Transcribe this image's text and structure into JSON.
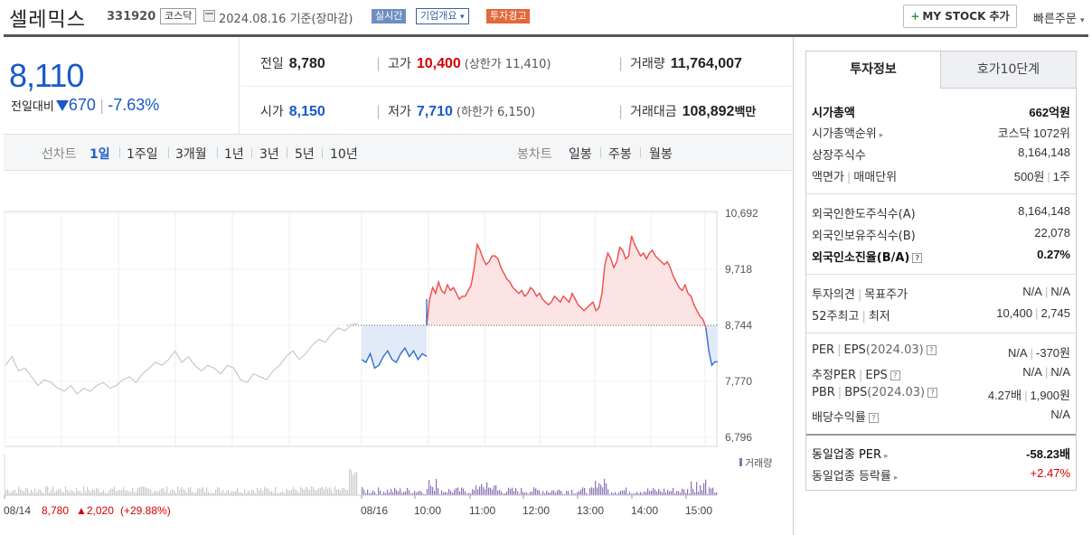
{
  "header": {
    "stock_name": "셀레믹스",
    "stock_code": "331920",
    "market": "코스닥",
    "date": "2024.08.16 기준(장마감)",
    "badges": [
      "실시간",
      "기업개요",
      "투자경고"
    ],
    "badge_arrow": "▾",
    "mystock_plus": "+",
    "mystock_label": "MY STOCK 추가",
    "quick_order": "빠른주문",
    "quick_order_arrow": "▾"
  },
  "summary": {
    "price": "8,110",
    "change_label": "전일대비",
    "change_value": "670",
    "change_pct": "-7.63%",
    "prev_close_label": "전일",
    "prev_close": "8,780",
    "high_label": "고가",
    "high": "10,400",
    "upper_limit": "(상한가 11,410)",
    "volume_label": "거래량",
    "volume": "11,764,007",
    "open_label": "시가",
    "open": "8,150",
    "low_label": "저가",
    "low": "7,710",
    "lower_limit": "(하한가 6,150)",
    "amount_label": "거래대금",
    "amount": "108,892",
    "amount_unit": "백만"
  },
  "chart_tabs": {
    "line_label": "선차트",
    "line_periods": [
      "1일",
      "1주일",
      "3개월",
      "1년",
      "3년",
      "5년",
      "10년"
    ],
    "candle_label": "봉차트",
    "candle_periods": [
      "일봉",
      "주봉",
      "월봉"
    ],
    "selected": "1일"
  },
  "chart_data": {
    "type": "line",
    "y_ticks": [
      "10,692",
      "9,718",
      "8,744",
      "7,770",
      "6,796"
    ],
    "ylim": [
      6796,
      10692
    ],
    "x_labels": [
      "08/14",
      "08/16",
      "10:00",
      "11:00",
      "12:00",
      "13:00",
      "14:00",
      "15:00"
    ],
    "baseline": 8744,
    "volume_legend": "거래량",
    "prev_day_info": {
      "date": "08/14",
      "close": "8,780",
      "change": "▲2,020",
      "pct": "(+29.88%)"
    },
    "colors": {
      "prev": "#c8c8c8",
      "up": "#ef4a4a",
      "down": "#2f6fd1",
      "up_fill": "#fde4e4",
      "down_fill": "#e2eaf8",
      "volume": "#8b72b8"
    },
    "series_prev_day": [
      8050,
      8200,
      7950,
      8000,
      7850,
      7700,
      7800,
      7750,
      7650,
      7600,
      7700,
      7550,
      7650,
      7600,
      7700,
      7750,
      7650,
      7700,
      7800,
      7850,
      7750,
      7900,
      8000,
      8100,
      8050,
      8150,
      8300,
      8100,
      8200,
      8050,
      7950,
      8050,
      8000,
      7900,
      8050,
      8000,
      7800,
      7750,
      7900,
      7850,
      7800,
      7950,
      8050,
      8200,
      8300,
      8150,
      8250,
      8400,
      8500,
      8450,
      8600,
      8700,
      8650,
      8750,
      8780
    ],
    "series_today_open": [
      8150,
      8100,
      8250,
      8000,
      8050,
      8200,
      8300,
      8150,
      8100,
      8250,
      8350,
      8200,
      8300,
      8150,
      8250,
      8200
    ],
    "series_today": [
      8744,
      9200,
      9400,
      9300,
      9500,
      9350,
      9300,
      9450,
      9350,
      9400,
      9300,
      9200,
      9250,
      9250,
      9350,
      9450,
      9750,
      10150,
      10050,
      9900,
      9800,
      9850,
      9950,
      9950,
      9900,
      9750,
      9650,
      9550,
      9500,
      9400,
      9350,
      9300,
      9350,
      9250,
      9300,
      9400,
      9350,
      9250,
      9300,
      9200,
      9150,
      9100,
      9150,
      9250,
      9200,
      9150,
      9250,
      9200,
      9150,
      9300,
      9200,
      9100,
      9050,
      9000,
      9050,
      9100,
      9150,
      9000,
      9050,
      9300,
      9800,
      10000,
      9900,
      9750,
      9850,
      10100,
      10050,
      9900,
      9950,
      10300,
      10150,
      10050,
      9950,
      10000,
      9900,
      10000,
      10050,
      9950,
      9900,
      9850,
      9800,
      9850,
      9750,
      9600,
      9500,
      9400,
      9350,
      9450,
      9300,
      9250,
      9100,
      9000,
      8900,
      8850,
      8700,
      8300,
      8050,
      8110,
      8110
    ]
  },
  "invest_panel": {
    "tab_active": "투자정보",
    "tab_other": "호가10단계",
    "arrow": "▸",
    "help": "?",
    "market_cap_label": "시가총액",
    "market_cap": "662억원",
    "market_cap_rank_label": "시가총액순위",
    "market_cap_rank": "코스닥 1072위",
    "listed_shares_label": "상장주식수",
    "listed_shares": "8,164,148",
    "face_value_label": "액면가",
    "trade_unit_label": "매매단위",
    "face_value": "500원",
    "trade_unit": "1주",
    "foreign_limit_label": "외국인한도주식수(A)",
    "foreign_limit": "8,164,148",
    "foreign_hold_label": "외국인보유주식수(B)",
    "foreign_hold": "22,078",
    "foreign_ratio_label": "외국인소진율(B/A)",
    "foreign_ratio": "0.27%",
    "opinion_label": "투자의견",
    "target_label": "목표주가",
    "opinion": "N/A",
    "target": "N/A",
    "high52_label": "52주최고",
    "low52_label": "최저",
    "high52": "10,400",
    "low52": "2,745",
    "per_label": "PER",
    "eps_label": "EPS",
    "eps_period": "(2024.03)",
    "per": "N/A",
    "eps": "-370원",
    "est_per_label": "추정PER",
    "est_eps_label": "EPS",
    "est_per": "N/A",
    "est_eps": "N/A",
    "pbr_label": "PBR",
    "bps_label": "BPS",
    "bps_period": "(2024.03)",
    "pbr": "4.27배",
    "bps": "1,900원",
    "dividend_label": "배당수익률",
    "dividend": "N/A",
    "industry_per_label": "동일업종 PER",
    "industry_per": "-58.23배",
    "industry_change_label": "동일업종 등락률",
    "industry_change": "+2.47%"
  }
}
